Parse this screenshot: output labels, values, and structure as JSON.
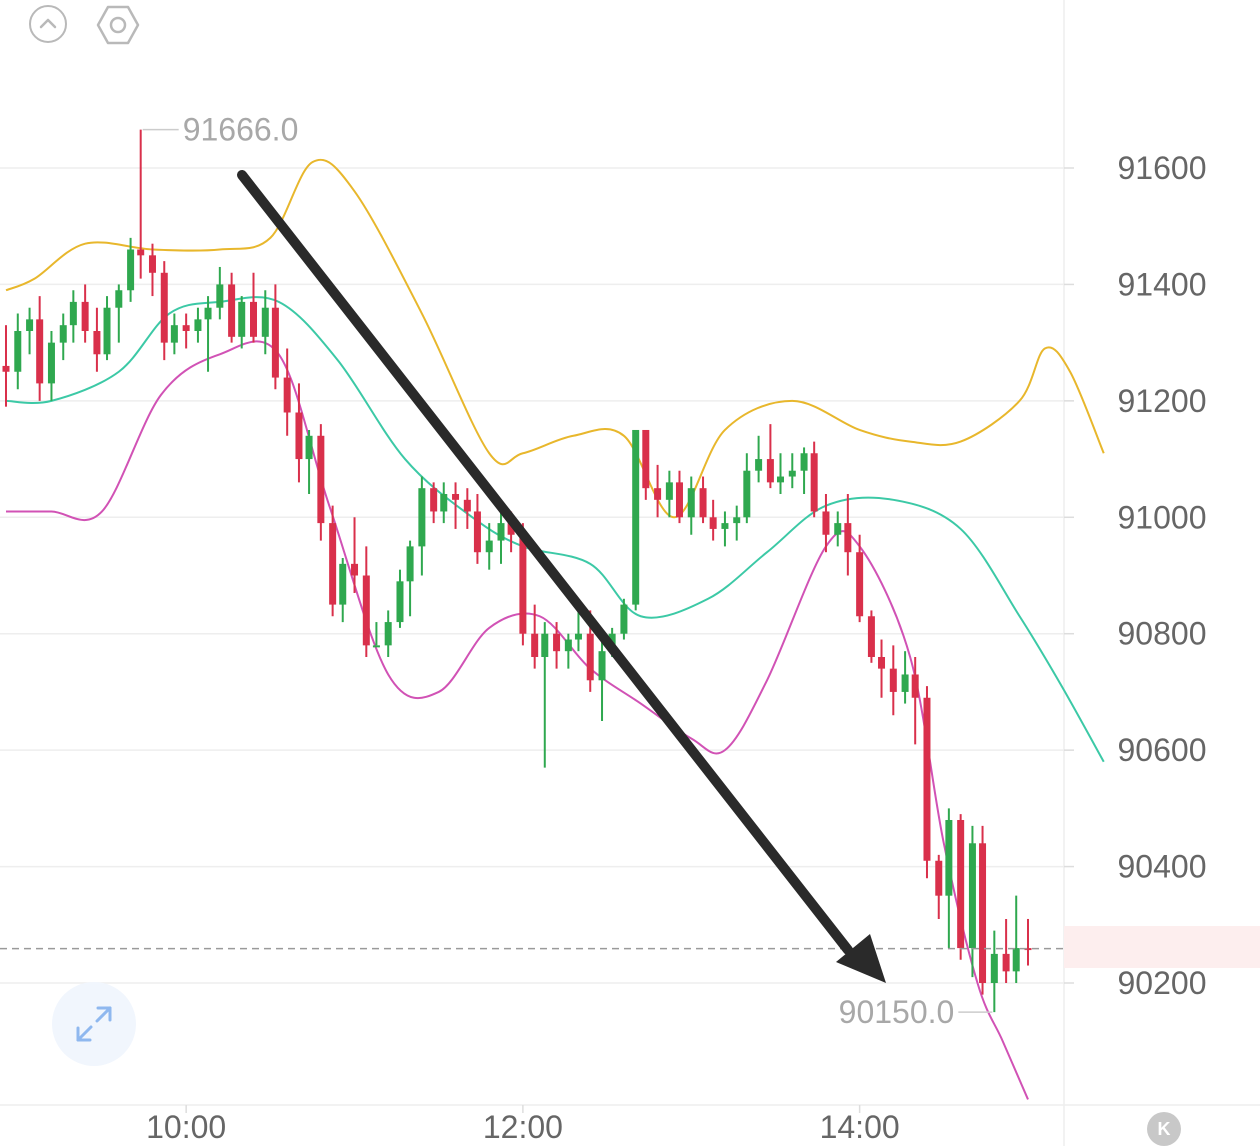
{
  "toolbar": {
    "collapse_icon": "chevron-up-circle-icon",
    "settings_icon": "hexagon-settings-icon",
    "expand_icon": "expand-arrows-icon",
    "kline_badge_label": "K"
  },
  "colors": {
    "up": "#2fa84f",
    "down": "#d9304b",
    "upper_band": "#e8b72c",
    "middle_band": "#3cc9a6",
    "lower_band": "#d152b5",
    "grid": "#eeeeee",
    "axis_text": "#666666",
    "marker_text": "#a8a8a8",
    "last_price": "#d9304b",
    "arrow": "#2a2a2a"
  },
  "chart_data": {
    "type": "candlestick",
    "x_tick_labels": [
      "10:00",
      "12:00",
      "14:00"
    ],
    "y_tick_labels": [
      "91600",
      "91400",
      "91200",
      "91000",
      "90800",
      "90600",
      "90400",
      "90200"
    ],
    "ylim": [
      90000,
      91820
    ],
    "high_marker": "91666.0",
    "low_marker": "90150.0",
    "last_price": "90259.1",
    "annotation": "downward trend arrow from ~10:15 to ~14:00",
    "bands": {
      "upper": [
        [
          8.93,
          91390
        ],
        [
          9.1,
          91410
        ],
        [
          9.4,
          91470
        ],
        [
          9.8,
          91460
        ],
        [
          10.2,
          91460
        ],
        [
          10.5,
          91480
        ],
        [
          10.75,
          91610
        ],
        [
          11.0,
          91560
        ],
        [
          11.4,
          91350
        ],
        [
          11.8,
          91110
        ],
        [
          12.0,
          91110
        ],
        [
          12.3,
          91140
        ],
        [
          12.6,
          91140
        ],
        [
          12.9,
          91000
        ],
        [
          13.2,
          91150
        ],
        [
          13.6,
          91200
        ],
        [
          14.0,
          91150
        ],
        [
          14.3,
          91130
        ],
        [
          14.6,
          91130
        ],
        [
          14.95,
          91200
        ],
        [
          15.1,
          91290
        ],
        [
          15.25,
          91250
        ],
        [
          15.45,
          91110
        ]
      ],
      "middle": [
        [
          8.93,
          91200
        ],
        [
          9.2,
          91200
        ],
        [
          9.6,
          91250
        ],
        [
          9.9,
          91350
        ],
        [
          10.2,
          91370
        ],
        [
          10.55,
          91370
        ],
        [
          10.9,
          91270
        ],
        [
          11.3,
          91100
        ],
        [
          11.7,
          91000
        ],
        [
          12.0,
          90950
        ],
        [
          12.4,
          90920
        ],
        [
          12.7,
          90830
        ],
        [
          13.1,
          90860
        ],
        [
          13.45,
          90940
        ],
        [
          13.8,
          91020
        ],
        [
          14.2,
          91030
        ],
        [
          14.6,
          90980
        ],
        [
          14.95,
          90830
        ],
        [
          15.2,
          90710
        ],
        [
          15.45,
          90580
        ]
      ],
      "lower": [
        [
          8.93,
          91010
        ],
        [
          9.2,
          91010
        ],
        [
          9.5,
          91010
        ],
        [
          9.85,
          91210
        ],
        [
          10.2,
          91280
        ],
        [
          10.55,
          91280
        ],
        [
          10.85,
          91020
        ],
        [
          11.2,
          90730
        ],
        [
          11.5,
          90700
        ],
        [
          11.8,
          90810
        ],
        [
          12.1,
          90830
        ],
        [
          12.4,
          90740
        ],
        [
          12.7,
          90680
        ],
        [
          13.0,
          90620
        ],
        [
          13.2,
          90600
        ],
        [
          13.45,
          90720
        ],
        [
          13.8,
          90950
        ],
        [
          14.0,
          90950
        ],
        [
          14.3,
          90760
        ],
        [
          14.5,
          90440
        ],
        [
          14.7,
          90200
        ],
        [
          14.85,
          90100
        ],
        [
          15.0,
          90000
        ]
      ]
    },
    "candles": [
      [
        8.93,
        91260,
        91330,
        91190,
        91250
      ],
      [
        9.0,
        91250,
        91350,
        91220,
        91320
      ],
      [
        9.07,
        91320,
        91360,
        91280,
        91340
      ],
      [
        9.13,
        91340,
        91380,
        91200,
        91230
      ],
      [
        9.2,
        91230,
        91320,
        91200,
        91300
      ],
      [
        9.27,
        91300,
        91350,
        91270,
        91330
      ],
      [
        9.33,
        91330,
        91390,
        91300,
        91370
      ],
      [
        9.4,
        91370,
        91400,
        91300,
        91320
      ],
      [
        9.47,
        91320,
        91360,
        91250,
        91280
      ],
      [
        9.53,
        91280,
        91380,
        91270,
        91360
      ],
      [
        9.6,
        91360,
        91400,
        91300,
        91390
      ],
      [
        9.67,
        91390,
        91480,
        91370,
        91460
      ],
      [
        9.73,
        91460,
        91666,
        91410,
        91450
      ],
      [
        9.8,
        91450,
        91470,
        91380,
        91420
      ],
      [
        9.87,
        91420,
        91440,
        91270,
        91300
      ],
      [
        9.93,
        91300,
        91350,
        91280,
        91330
      ],
      [
        10.0,
        91330,
        91350,
        91290,
        91320
      ],
      [
        10.07,
        91320,
        91360,
        91300,
        91340
      ],
      [
        10.13,
        91340,
        91380,
        91250,
        91360
      ],
      [
        10.2,
        91360,
        91430,
        91340,
        91400
      ],
      [
        10.27,
        91400,
        91420,
        91300,
        91310
      ],
      [
        10.33,
        91310,
        91380,
        91290,
        91370
      ],
      [
        10.4,
        91370,
        91420,
        91300,
        91310
      ],
      [
        10.47,
        91310,
        91390,
        91280,
        91360
      ],
      [
        10.53,
        91360,
        91400,
        91220,
        91240
      ],
      [
        10.6,
        91240,
        91290,
        91140,
        91180
      ],
      [
        10.67,
        91180,
        91230,
        91060,
        91100
      ],
      [
        10.73,
        91100,
        91150,
        91040,
        91140
      ],
      [
        10.8,
        91140,
        91160,
        90960,
        90990
      ],
      [
        10.87,
        90990,
        91020,
        90830,
        90850
      ],
      [
        10.93,
        90850,
        90930,
        90820,
        90920
      ],
      [
        11.0,
        90920,
        91000,
        90870,
        90900
      ],
      [
        11.07,
        90900,
        90950,
        90760,
        90780
      ],
      [
        11.13,
        90780,
        90820,
        90780,
        90780
      ],
      [
        11.2,
        90780,
        90840,
        90760,
        90820
      ],
      [
        11.27,
        90820,
        90910,
        90810,
        90890
      ],
      [
        11.33,
        90890,
        90960,
        90830,
        90950
      ],
      [
        11.4,
        90950,
        91070,
        90900,
        91050
      ],
      [
        11.47,
        91050,
        91060,
        90990,
        91010
      ],
      [
        11.53,
        91010,
        91060,
        90990,
        91040
      ],
      [
        11.6,
        91040,
        91060,
        90980,
        91030
      ],
      [
        11.67,
        91030,
        91050,
        90980,
        91010
      ],
      [
        11.73,
        91010,
        91040,
        90920,
        90940
      ],
      [
        11.8,
        90940,
        90990,
        90910,
        90960
      ],
      [
        11.87,
        90960,
        91010,
        90920,
        90990
      ],
      [
        11.93,
        90990,
        91010,
        90940,
        90970
      ],
      [
        12.0,
        90970,
        90990,
        90780,
        90800
      ],
      [
        12.07,
        90800,
        90850,
        90740,
        90760
      ],
      [
        12.13,
        90760,
        90820,
        90570,
        90800
      ],
      [
        12.2,
        90800,
        90820,
        90740,
        90770
      ],
      [
        12.27,
        90770,
        90800,
        90740,
        90790
      ],
      [
        12.33,
        90790,
        90850,
        90770,
        90800
      ],
      [
        12.4,
        90800,
        90840,
        90700,
        90720
      ],
      [
        12.47,
        90720,
        90790,
        90650,
        90770
      ],
      [
        12.53,
        90770,
        90810,
        90760,
        90800
      ],
      [
        12.6,
        90800,
        90860,
        90790,
        90850
      ],
      [
        12.67,
        90850,
        91150,
        90840,
        91150
      ],
      [
        12.73,
        91150,
        91150,
        91030,
        91050
      ],
      [
        12.8,
        91050,
        91090,
        91000,
        91030
      ],
      [
        12.87,
        91030,
        91080,
        91000,
        91060
      ],
      [
        12.93,
        91060,
        91080,
        90990,
        91000
      ],
      [
        13.0,
        91000,
        91070,
        90970,
        91050
      ],
      [
        13.07,
        91050,
        91070,
        90990,
        91000
      ],
      [
        13.13,
        91000,
        91030,
        90960,
        90980
      ],
      [
        13.2,
        90980,
        91010,
        90950,
        90990
      ],
      [
        13.27,
        90990,
        91020,
        90960,
        91000
      ],
      [
        13.33,
        91000,
        91110,
        90990,
        91080
      ],
      [
        13.4,
        91080,
        91140,
        91060,
        91100
      ],
      [
        13.47,
        91100,
        91160,
        91050,
        91060
      ],
      [
        13.53,
        91060,
        91110,
        91040,
        91070
      ],
      [
        13.6,
        91070,
        91110,
        91050,
        91080
      ],
      [
        13.67,
        91080,
        91120,
        91040,
        91110
      ],
      [
        13.73,
        91110,
        91130,
        91000,
        91010
      ],
      [
        13.8,
        91010,
        91040,
        90940,
        90970
      ],
      [
        13.87,
        90970,
        91010,
        90950,
        90990
      ],
      [
        13.93,
        90990,
        91040,
        90900,
        90940
      ],
      [
        14.0,
        90940,
        90970,
        90820,
        90830
      ],
      [
        14.07,
        90830,
        90840,
        90750,
        90760
      ],
      [
        14.13,
        90760,
        90790,
        90690,
        90740
      ],
      [
        14.2,
        90740,
        90780,
        90660,
        90700
      ],
      [
        14.27,
        90700,
        90770,
        90680,
        90730
      ],
      [
        14.33,
        90730,
        90760,
        90610,
        90690
      ],
      [
        14.4,
        90690,
        90710,
        90380,
        90410
      ],
      [
        14.47,
        90410,
        90420,
        90310,
        90350
      ],
      [
        14.53,
        90350,
        90500,
        90260,
        90480
      ],
      [
        14.6,
        90480,
        90490,
        90240,
        90260
      ],
      [
        14.67,
        90260,
        90470,
        90210,
        90440
      ],
      [
        14.73,
        90440,
        90470,
        90180,
        90200
      ],
      [
        14.8,
        90200,
        90290,
        90150,
        90250
      ],
      [
        14.87,
        90250,
        90310,
        90200,
        90220
      ],
      [
        14.93,
        90220,
        90350,
        90200,
        90260
      ],
      [
        15.0,
        90260,
        90310,
        90230,
        90259.1
      ]
    ]
  }
}
